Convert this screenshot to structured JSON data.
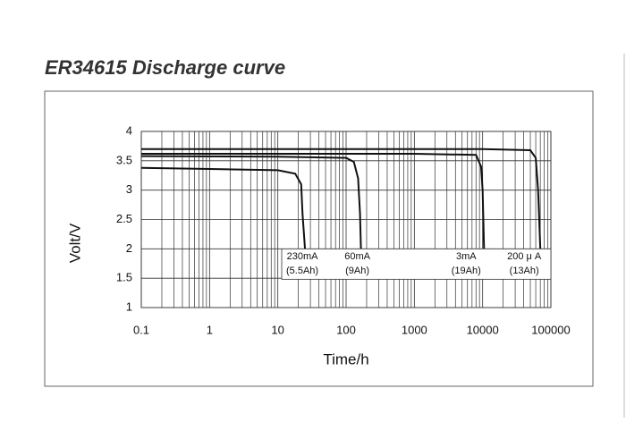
{
  "chart_data": {
    "type": "line",
    "title": "ER34615   Discharge curve",
    "xlabel": "Time/h",
    "ylabel": "Volt/V",
    "xscale": "log",
    "xlim": [
      0.1,
      100000
    ],
    "ylim": [
      1,
      4
    ],
    "xticks": [
      0.1,
      1,
      10,
      100,
      1000,
      10000,
      100000
    ],
    "yticks": [
      1,
      1.5,
      2,
      2.5,
      3,
      3.5,
      4
    ],
    "grid": true,
    "minor_grid": true,
    "series": [
      {
        "name": "230mA",
        "capacity": "(5.5Ah)",
        "color": "#111111",
        "x": [
          0.1,
          1,
          10,
          18,
          22,
          23,
          25
        ],
        "values": [
          3.38,
          3.36,
          3.34,
          3.28,
          3.1,
          2.6,
          2.0
        ]
      },
      {
        "name": "60mA",
        "capacity": "(9Ah)",
        "color": "#111111",
        "x": [
          0.1,
          10,
          100,
          130,
          150,
          160,
          165
        ],
        "values": [
          3.58,
          3.57,
          3.55,
          3.48,
          3.2,
          2.6,
          2.0
        ]
      },
      {
        "name": "3mA",
        "capacity": "(19Ah)",
        "color": "#111111",
        "x": [
          0.1,
          1000,
          8000,
          9500,
          10000,
          10500
        ],
        "values": [
          3.62,
          3.62,
          3.6,
          3.4,
          3.0,
          2.0
        ]
      },
      {
        "name": "200 μ A",
        "capacity": "(13Ah)",
        "color": "#111111",
        "x": [
          0.1,
          10000,
          50000,
          60000,
          65000,
          70000
        ],
        "values": [
          3.7,
          3.7,
          3.68,
          3.55,
          3.0,
          2.0
        ]
      }
    ]
  }
}
